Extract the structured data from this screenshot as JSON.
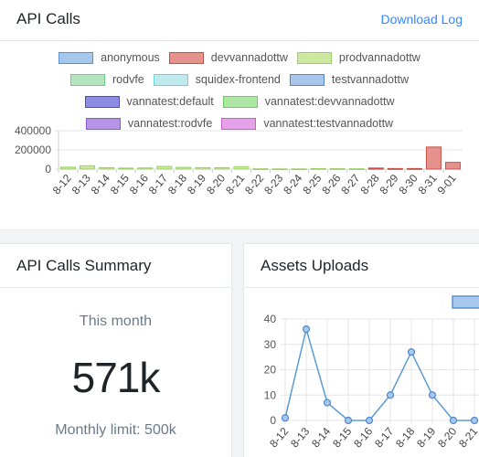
{
  "api_calls": {
    "title": "API Calls",
    "download_label": "Download Log",
    "legend_rows": [
      [
        {
          "label": "anonymous",
          "fill": "#a6c8ec",
          "stroke": "#5b8fcd"
        },
        {
          "label": "devvannadottw",
          "fill": "#e6928c",
          "stroke": "#c5524a"
        },
        {
          "label": "prodvannadottw",
          "fill": "#cde9a0",
          "stroke": "#9ccf64"
        }
      ],
      [
        {
          "label": "rodvfe",
          "fill": "#b3e6c0",
          "stroke": "#6ccf84"
        },
        {
          "label": "squidex-frontend",
          "fill": "#bfeaee",
          "stroke": "#6fd2da"
        },
        {
          "label": "testvannadottw",
          "fill": "#a9c6ea",
          "stroke": "#4f86cf"
        }
      ],
      [
        {
          "label": "vannatest:default",
          "fill": "#8c8ce6",
          "stroke": "#4a4ac2"
        },
        {
          "label": "vannatest:devvannadottw",
          "fill": "#ace8a4",
          "stroke": "#6bcf5f"
        }
      ],
      [
        {
          "label": "vannatest:rodvfe",
          "fill": "#b794e6",
          "stroke": "#8a5ad0"
        },
        {
          "label": "vannatest:testvannadottw",
          "fill": "#e6a2e6",
          "stroke": "#c95fc9"
        }
      ]
    ]
  },
  "chart_data": [
    {
      "type": "bar",
      "categories": [
        "8-12",
        "8-13",
        "8-14",
        "8-15",
        "8-16",
        "8-17",
        "8-18",
        "8-19",
        "8-20",
        "8-21",
        "8-22",
        "8-23",
        "8-24",
        "8-25",
        "8-26",
        "8-27",
        "8-28",
        "8-29",
        "8-30",
        "8-31",
        "9-01"
      ],
      "series": [
        {
          "name": "prodvannadottw",
          "color": "#cde9a0",
          "values": [
            20000,
            35000,
            15000,
            10000,
            12000,
            28000,
            18000,
            15000,
            15000,
            25000,
            3000,
            2000,
            2000,
            5000,
            4000,
            3000,
            3000,
            3000,
            3000,
            0,
            0
          ]
        },
        {
          "name": "devvannadottw",
          "color": "#e6928c",
          "values": [
            0,
            0,
            0,
            0,
            0,
            0,
            0,
            0,
            0,
            0,
            0,
            0,
            0,
            0,
            0,
            0,
            8000,
            3000,
            3000,
            230000,
            70000
          ]
        }
      ],
      "yticks": [
        0,
        200000,
        400000
      ],
      "ytick_labels": [
        "0",
        "200000",
        "400000"
      ],
      "ylim": [
        0,
        400000
      ],
      "stacked": true,
      "grid": true
    },
    {
      "type": "line",
      "title": "",
      "x": [
        "8-12",
        "8-13",
        "8-14",
        "8-15",
        "8-16",
        "8-17",
        "8-18",
        "8-19",
        "8-20",
        "8-21"
      ],
      "series": [
        {
          "color": "#5b9bd5",
          "values": [
            1,
            36,
            7,
            0,
            0,
            10,
            27,
            10,
            0,
            0
          ]
        }
      ],
      "yticks": [
        0,
        10,
        20,
        30,
        40
      ],
      "ylim": [
        0,
        40
      ],
      "grid": true
    }
  ],
  "summary": {
    "title": "API Calls Summary",
    "period_label": "This month",
    "value": "571k",
    "limit_label": "Monthly limit: 500k"
  },
  "assets": {
    "title": "Assets Uploads"
  }
}
